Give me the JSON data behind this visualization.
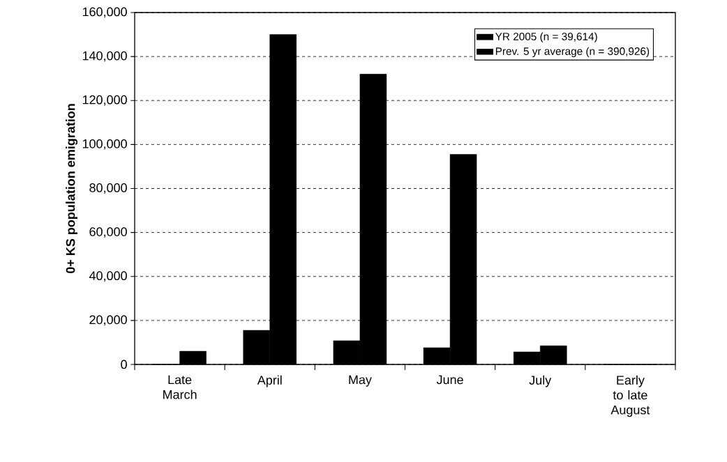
{
  "chart_data": {
    "type": "bar",
    "ylabel": "0+ KS population emigration",
    "categories": [
      "Late March",
      "April",
      "May",
      "June",
      "July",
      "Early to late August"
    ],
    "series": [
      {
        "name": "YR 2005 (n = 39,614)",
        "color": "#000000",
        "values": [
          0,
          15500,
          10800,
          7600,
          5700,
          0
        ]
      },
      {
        "name": "Prev. 5 yr average (n = 390,926)",
        "color": "#000000",
        "values": [
          6000,
          150000,
          132000,
          95500,
          8500,
          0
        ]
      }
    ],
    "ylim": [
      0,
      160000
    ],
    "yticks": [
      0,
      {
        "value": 20000,
        "label": "20,000"
      },
      {
        "value": 40000,
        "label": "40,000"
      },
      {
        "value": 60000,
        "label": "60,000"
      },
      {
        "value": 80000,
        "label": "80,000"
      },
      {
        "value": 100000,
        "label": "100,000"
      },
      {
        "value": 120000,
        "label": "120,000"
      },
      {
        "value": 140000,
        "label": "140,000"
      },
      {
        "value": 160000,
        "label": "160,000"
      }
    ],
    "grid": "y",
    "legend": "top right"
  }
}
